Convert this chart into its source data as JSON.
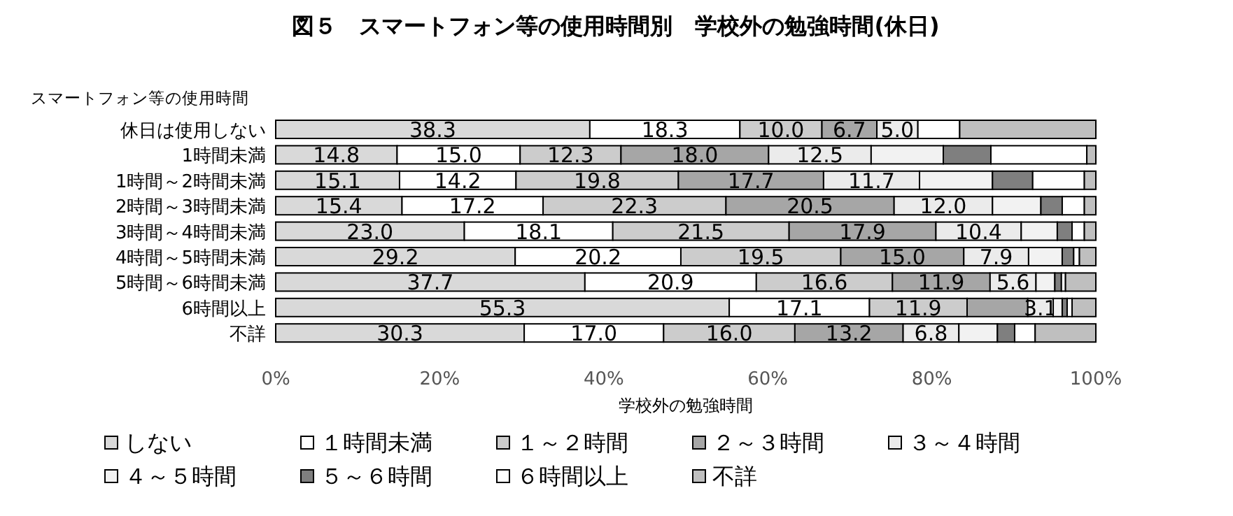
{
  "chart_data": {
    "type": "bar",
    "orientation": "horizontal",
    "stacked": true,
    "title": "図５　スマートフォン等の使用時間別　学校外の勉強時間(休日)",
    "ylabel": "スマートフォン等の使用時間",
    "xlabel": "学校外の勉強時間",
    "categories": [
      "休日は使用しない",
      "1時間未満",
      "1時間～2時間未満",
      "2時間～3時間未満",
      "3時間～4時間未満",
      "4時間～5時間未満",
      "5時間～6時間未満",
      "6時間以上",
      "不詳"
    ],
    "xlim": [
      0,
      100
    ],
    "xticks": [
      {
        "value": 0,
        "label": "0%"
      },
      {
        "value": 20,
        "label": "20%"
      },
      {
        "value": 40,
        "label": "40%"
      },
      {
        "value": 60,
        "label": "60%"
      },
      {
        "value": 80,
        "label": "80%"
      },
      {
        "value": 100,
        "label": "100%"
      }
    ],
    "legend": "bottom",
    "series": [
      {
        "name": "しない",
        "color": "#d9d9d9",
        "values": [
          38.3,
          14.8,
          15.1,
          15.4,
          23.0,
          29.2,
          37.7,
          55.3,
          30.3
        ],
        "value_labels": [
          "38.3",
          "14.8",
          "15.1",
          "15.4",
          "23.0",
          "29.2",
          "37.7",
          "55.3",
          "30.3"
        ]
      },
      {
        "name": "１時間未満",
        "color": "#ffffff",
        "values": [
          18.3,
          15.0,
          14.2,
          17.2,
          18.1,
          20.2,
          20.9,
          17.1,
          17.0
        ],
        "value_labels": [
          "18.3",
          "15.0",
          "14.2",
          "17.2",
          "18.1",
          "20.2",
          "20.9",
          "17.1",
          "17.0"
        ]
      },
      {
        "name": "１～２時間",
        "color": "#cccccc",
        "values": [
          10.0,
          12.3,
          19.8,
          22.3,
          21.5,
          19.5,
          16.6,
          11.9,
          16.0
        ],
        "value_labels": [
          "10.0",
          "12.3",
          "19.8",
          "22.3",
          "21.5",
          "19.5",
          "16.6",
          "11.9",
          "16.0"
        ]
      },
      {
        "name": "２～３時間",
        "color": "#a6a6a6",
        "values": [
          6.7,
          18.0,
          17.7,
          20.5,
          17.9,
          15.0,
          11.9,
          7.4,
          13.2
        ],
        "value_labels": [
          "6.7",
          "18.0",
          "17.7",
          "20.5",
          "17.9",
          "15.0",
          "11.9",
          null,
          "13.2"
        ]
      },
      {
        "name": "３～４時間",
        "color": "#ebebeb",
        "values": [
          5.0,
          12.5,
          11.7,
          12.0,
          10.4,
          7.9,
          5.6,
          3.1,
          6.8
        ],
        "value_labels": [
          "5.0",
          "12.5",
          "11.7",
          "12.0",
          "10.4",
          "7.9",
          "5.6",
          "3.1",
          "6.8"
        ]
      },
      {
        "name": "４～５時間",
        "color": "#f2f2f2",
        "values": [
          0,
          8.8,
          8.9,
          5.9,
          4.4,
          4.1,
          2.3,
          1.1,
          4.7
        ]
      },
      {
        "name": "５～６時間",
        "color": "#7f7f7f",
        "values": [
          0,
          5.8,
          4.9,
          2.6,
          1.8,
          1.4,
          0.8,
          0.6,
          2.1
        ]
      },
      {
        "name": "６時間以上",
        "color": "#ffffff",
        "values": [
          5.1,
          11.7,
          6.3,
          2.7,
          1.5,
          0.7,
          0.5,
          0.6,
          2.5
        ]
      },
      {
        "name": "不詳",
        "color": "#bfbfbf",
        "values": [
          16.6,
          1.1,
          1.4,
          1.4,
          1.4,
          2.0,
          3.7,
          2.9,
          7.4
        ]
      }
    ]
  }
}
